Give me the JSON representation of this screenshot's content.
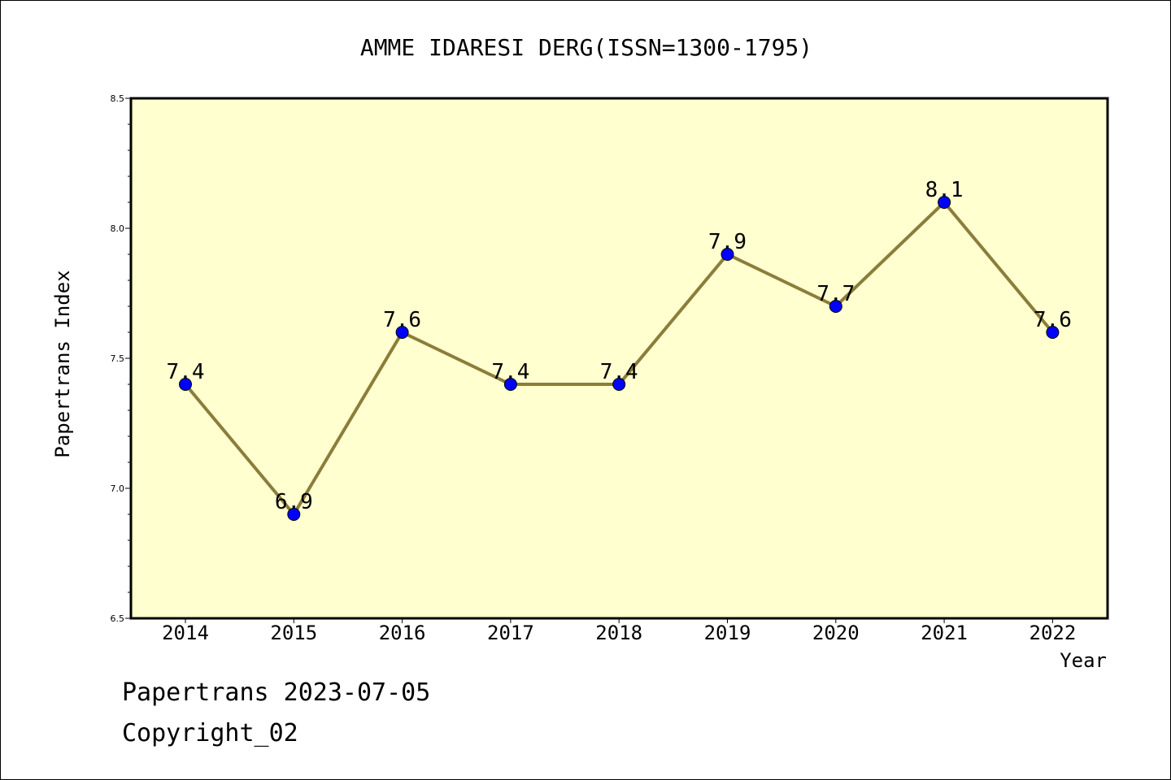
{
  "chart_data": {
    "type": "line",
    "title": "AMME IDARESI DERG(ISSN=1300-1795)",
    "xlabel": "Year",
    "ylabel": "Papertrans Index",
    "categories": [
      "2014",
      "2015",
      "2016",
      "2017",
      "2018",
      "2019",
      "2020",
      "2021",
      "2022"
    ],
    "series": [
      {
        "values": [
          7.4,
          6.9,
          7.6,
          7.4,
          7.4,
          7.9,
          7.7,
          8.1,
          7.6
        ]
      }
    ],
    "data_labels": [
      "7.4",
      "6.9",
      "7.6",
      "7.4",
      "7.4",
      "7.9",
      "7.7",
      "8.1",
      "7.6"
    ],
    "ylim": [
      6.5,
      8.5
    ],
    "yticks": [
      "6.5",
      "7.0",
      "7.5",
      "8.0",
      "8.5"
    ],
    "grid": false,
    "colors": {
      "plot_background": "#ffffd0",
      "line": "#8b7d3a",
      "marker": "#0000ff"
    }
  },
  "footer": {
    "line1": "Papertrans 2023-07-05",
    "line2": "Copyright_02"
  }
}
